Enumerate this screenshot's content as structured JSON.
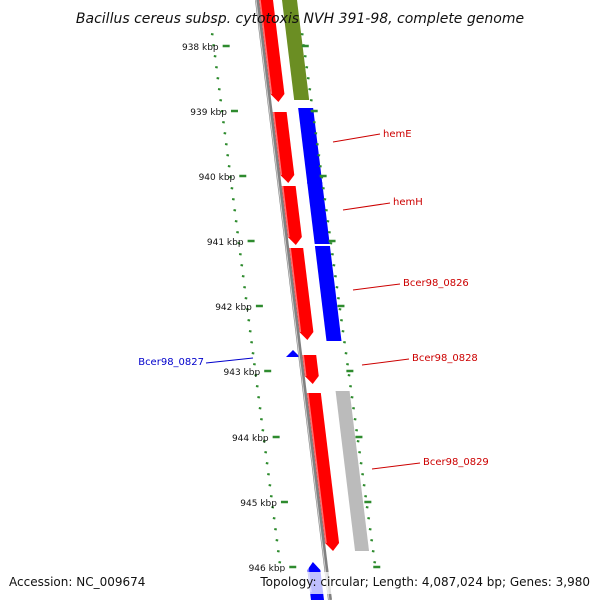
{
  "title": "Bacillus cereus subsp. cytotoxis NVH 391-98, complete genome",
  "footer": {
    "accession": "Accession: NC_009674",
    "summary": "Topology: circular; Length: 4,087,024 bp; Genes: 3,980"
  },
  "colors": {
    "forward_gene": "#ff0000",
    "reverse_gene": "#0000ff",
    "olive_track": "#6b8e23",
    "gray_track": "#bbbbbb",
    "backbone": "#808080",
    "tick": "#2e8b2e",
    "label_red": "#cc0000",
    "label_blue": "#0000cc"
  },
  "ticks": [
    {
      "label": "938 kbp"
    },
    {
      "label": "939 kbp"
    },
    {
      "label": "940 kbp"
    },
    {
      "label": "941 kbp"
    },
    {
      "label": "942 kbp"
    },
    {
      "label": "943 kbp"
    },
    {
      "label": "944 kbp"
    },
    {
      "label": "945 kbp"
    },
    {
      "label": "946 kbp"
    }
  ],
  "genes": [
    {
      "name": "hemE",
      "strand": "forward"
    },
    {
      "name": "hemH",
      "strand": "forward"
    },
    {
      "name": "Bcer98_0826",
      "strand": "forward"
    },
    {
      "name": "Bcer98_0827",
      "strand": "reverse"
    },
    {
      "name": "Bcer98_0828",
      "strand": "forward"
    },
    {
      "name": "Bcer98_0829",
      "strand": "forward"
    }
  ]
}
